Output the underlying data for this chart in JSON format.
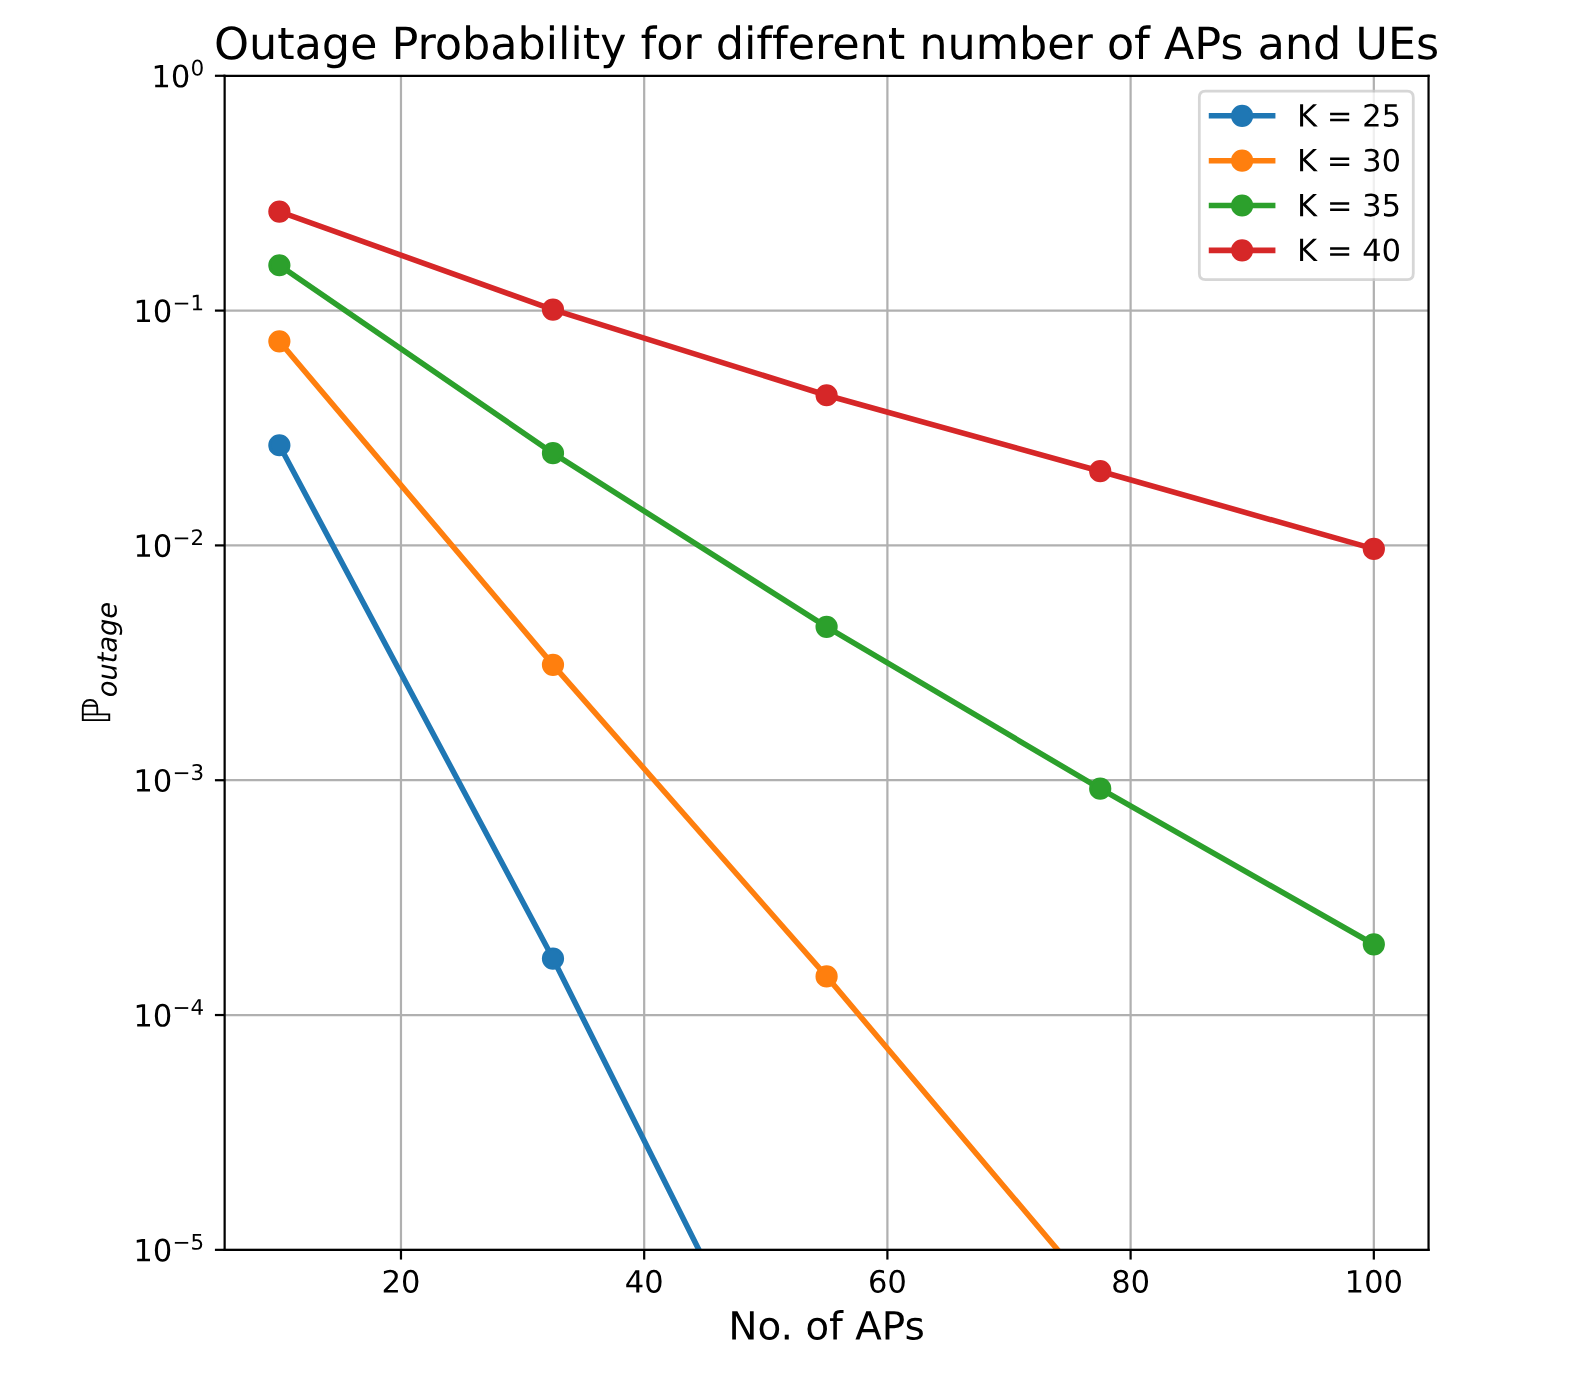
{
  "chart_data": {
    "type": "line",
    "title": "Outage Probability for different number of APs and UEs",
    "xlabel": "No. of APs",
    "ylabel": "ℙ$_{outage}$",
    "x": [
      10,
      32.5,
      55,
      77.5,
      100
    ],
    "series": [
      {
        "name": "K = 25",
        "color": "#1f77b4",
        "x": [
          10,
          32.5,
          44.5
        ],
        "values": [
          0.0267,
          0.000174,
          1e-05
        ]
      },
      {
        "name": "K = 30",
        "color": "#ff7f0e",
        "x": [
          10,
          32.5,
          55,
          74
        ],
        "values": [
          0.074,
          0.0031,
          0.000146,
          1e-05
        ]
      },
      {
        "name": "K = 35",
        "color": "#2ca02c",
        "values": [
          0.156,
          0.0247,
          0.0045,
          0.00092,
          0.0002
        ]
      },
      {
        "name": "K = 40",
        "color": "#d62728",
        "values": [
          0.264,
          0.101,
          0.0436,
          0.0207,
          0.00966
        ]
      }
    ],
    "log": "y",
    "xlim": [
      5.5,
      104.5
    ],
    "ylim": [
      1e-05,
      1
    ],
    "xticks": [
      20,
      40,
      60,
      80,
      100
    ],
    "yticks": [
      {
        "value": 1e-05,
        "label": "10$^{−5}$"
      },
      {
        "value": 0.0001,
        "label": "10$^{−4}$"
      },
      {
        "value": 0.001,
        "label": "10$^{−3}$"
      },
      {
        "value": 0.01,
        "label": "10$^{−2}$"
      },
      {
        "value": 0.1,
        "label": "10$^{−1}$"
      },
      {
        "value": 1,
        "label": "10$^{0}$"
      }
    ],
    "grid": true,
    "legend": "top right",
    "marker": "circle",
    "line_style": "solid"
  }
}
